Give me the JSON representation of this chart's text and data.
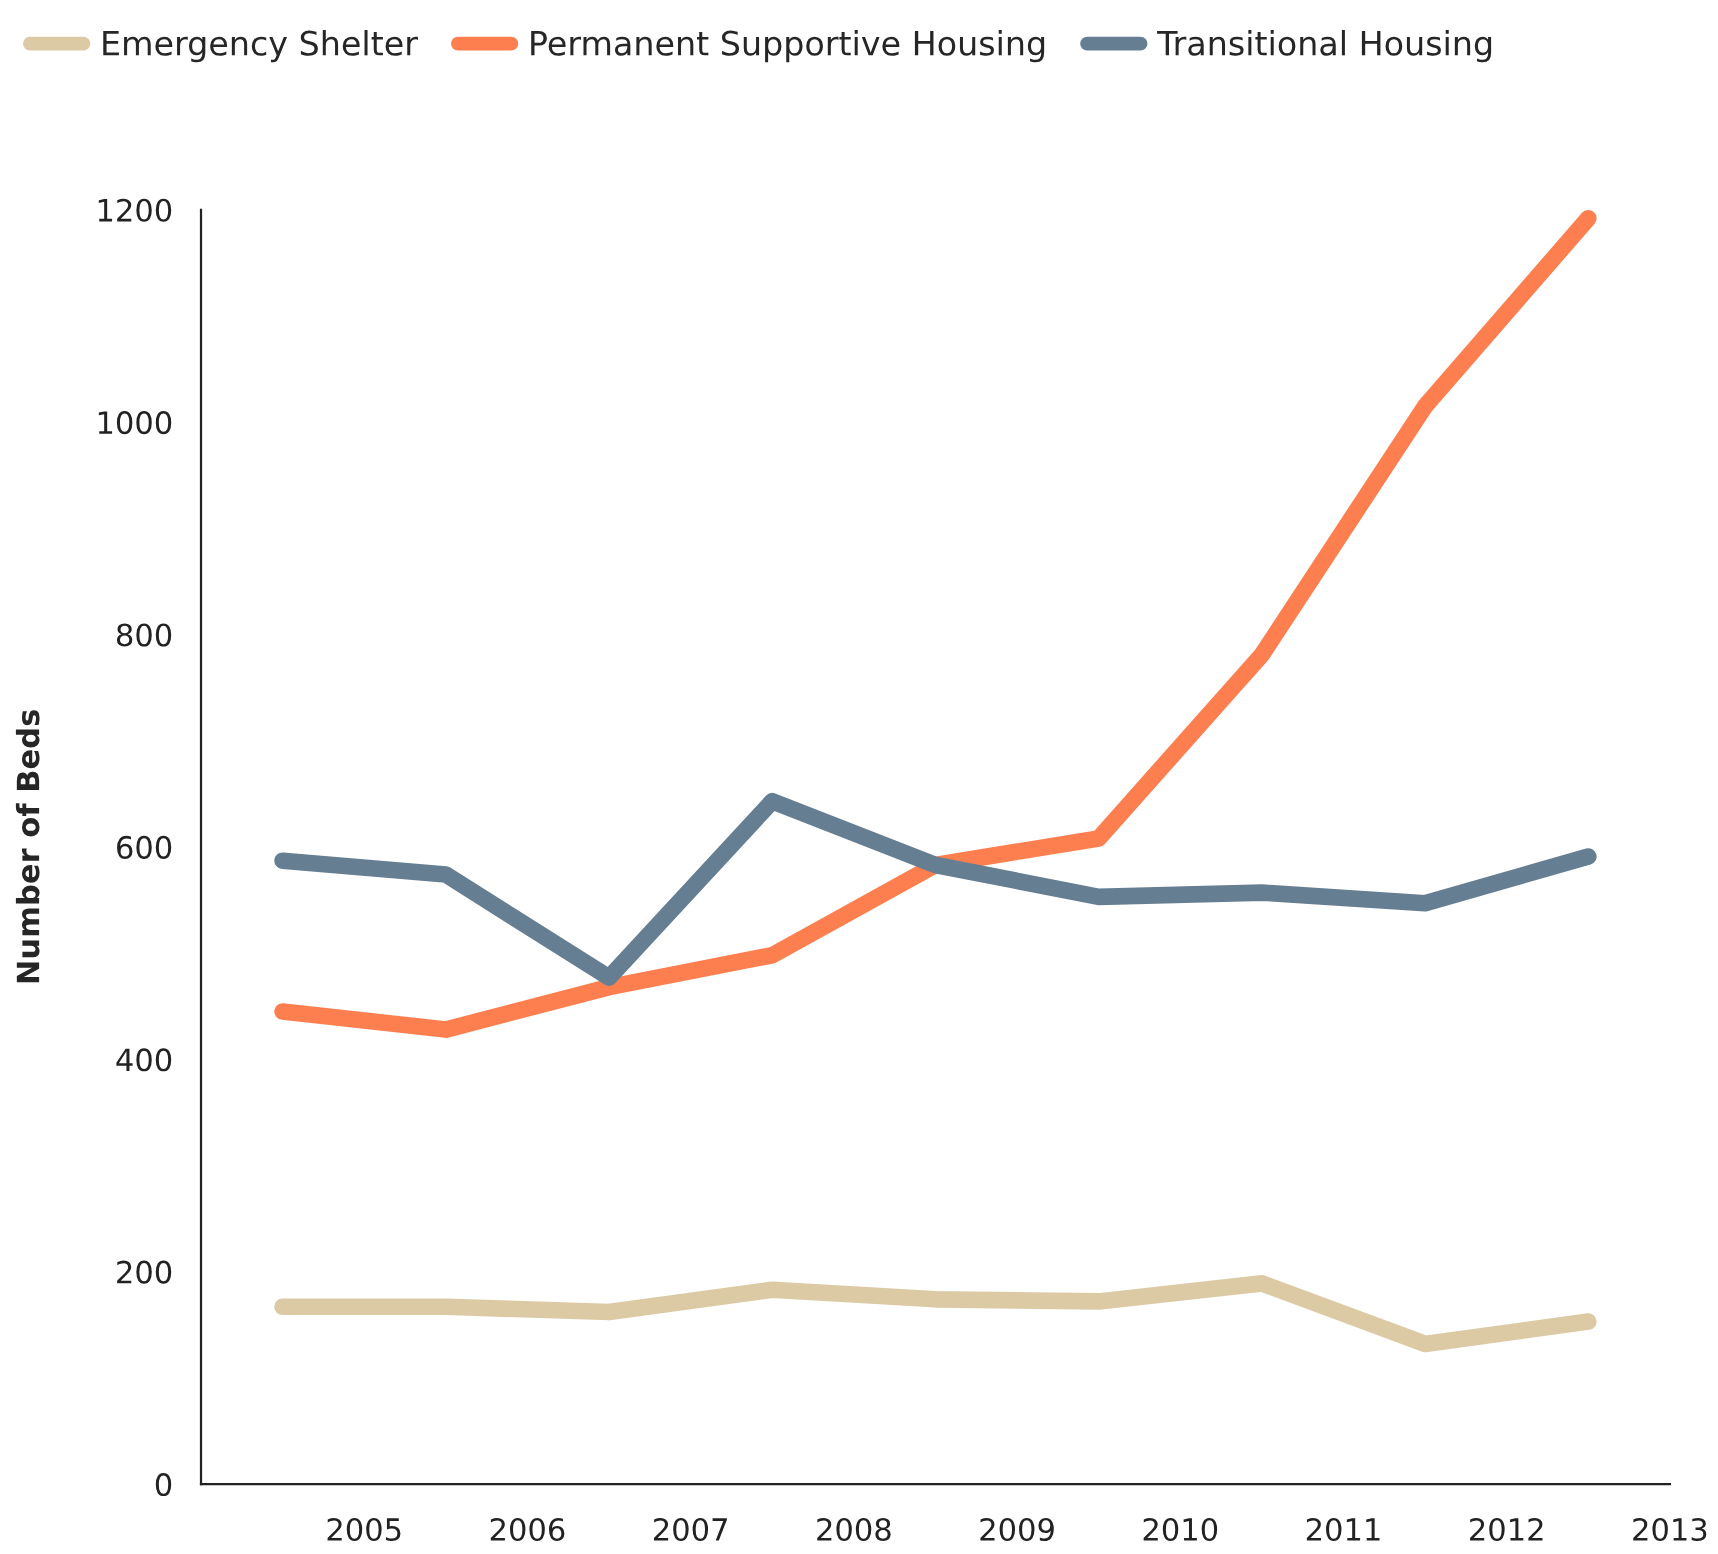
{
  "chart_data": {
    "type": "line",
    "ylabel": "Number of Beds",
    "x": [
      2004.5,
      2005.5,
      2006.5,
      2007.5,
      2008.5,
      2009.5,
      2010.5,
      2011.5,
      2012.5
    ],
    "series": [
      {
        "name": "Emergency Shelter",
        "color": "#dccaa5",
        "values": [
          167,
          167,
          162,
          183,
          174,
          172,
          189,
          132,
          153
        ]
      },
      {
        "name": "Permanent Supportive Housing",
        "color": "#fd7f4f",
        "values": [
          445,
          428,
          468,
          498,
          583,
          608,
          781,
          1015,
          1192
        ]
      },
      {
        "name": "Transitional Housing",
        "color": "#667e92",
        "values": [
          587,
          574,
          477,
          643,
          583,
          553,
          557,
          547,
          591
        ]
      }
    ],
    "xlim": [
      2004,
      2013
    ],
    "xticks": [
      2005,
      2006,
      2007,
      2008,
      2009,
      2010,
      2011,
      2012,
      2013
    ],
    "ylim": [
      0,
      1200
    ],
    "yticks": [
      0,
      200,
      400,
      600,
      800,
      1000,
      1200
    ],
    "grid": false,
    "legend": "top left",
    "marker": "none",
    "line_style": "solid"
  }
}
